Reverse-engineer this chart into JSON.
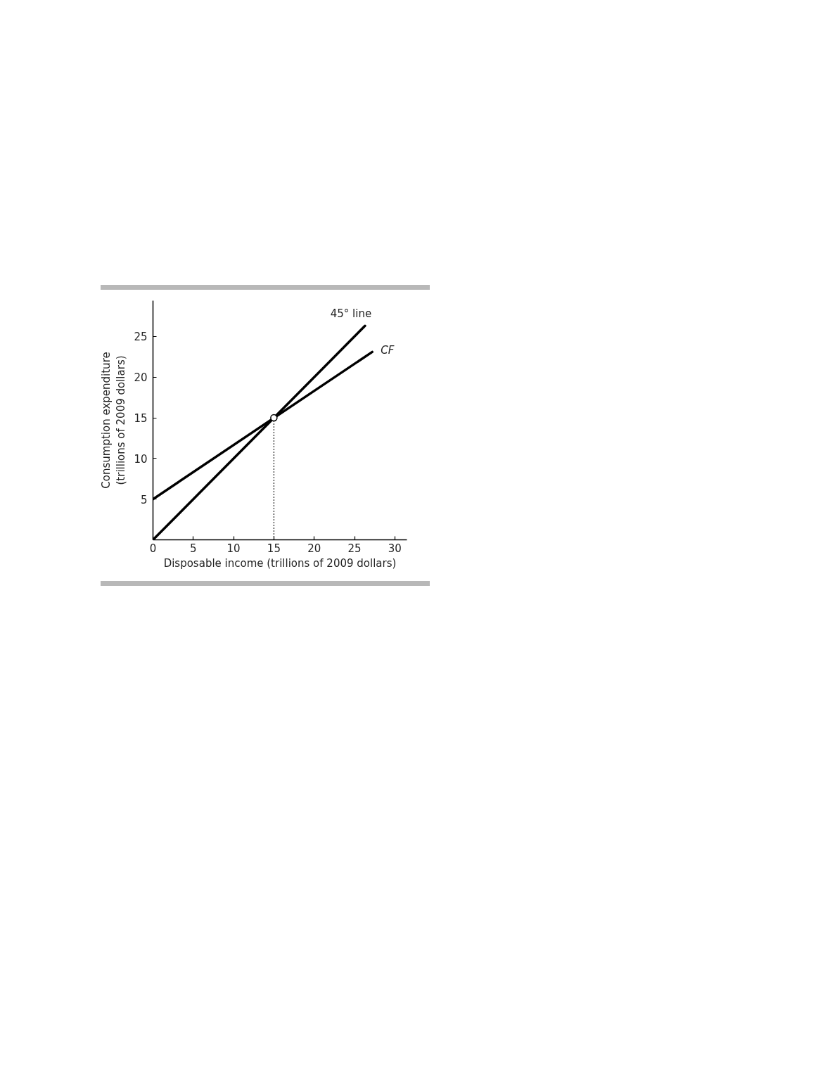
{
  "chart_data": {
    "type": "line",
    "xlabel": "Disposable income (trillions of 2009 dollars)",
    "ylabel": "Consumption expenditure\n(trillions of 2009 dollars)",
    "xlim": [
      0,
      31.5
    ],
    "ylim": [
      0,
      29.4
    ],
    "xticks": [
      0,
      5,
      10,
      15,
      20,
      25,
      30
    ],
    "yticks": [
      5,
      10,
      15,
      20,
      25
    ],
    "grid": false,
    "legend": false,
    "series": [
      {
        "name": "45° line",
        "color": "#000000",
        "x": [
          0,
          26.3
        ],
        "values": [
          0,
          26.3
        ]
      },
      {
        "name": "CF",
        "color": "#000000",
        "x": [
          0,
          27.2
        ],
        "values": [
          5,
          23.1
        ]
      },
      {
        "type": "line",
        "color": "#000000",
        "x": [
          15,
          15
        ],
        "values": [
          0,
          15
        ],
        "line_style": "dotted"
      },
      {
        "type": "scatter",
        "color": "#000000",
        "x": [
          15
        ],
        "values": [
          15
        ],
        "marker": "circle"
      }
    ]
  }
}
